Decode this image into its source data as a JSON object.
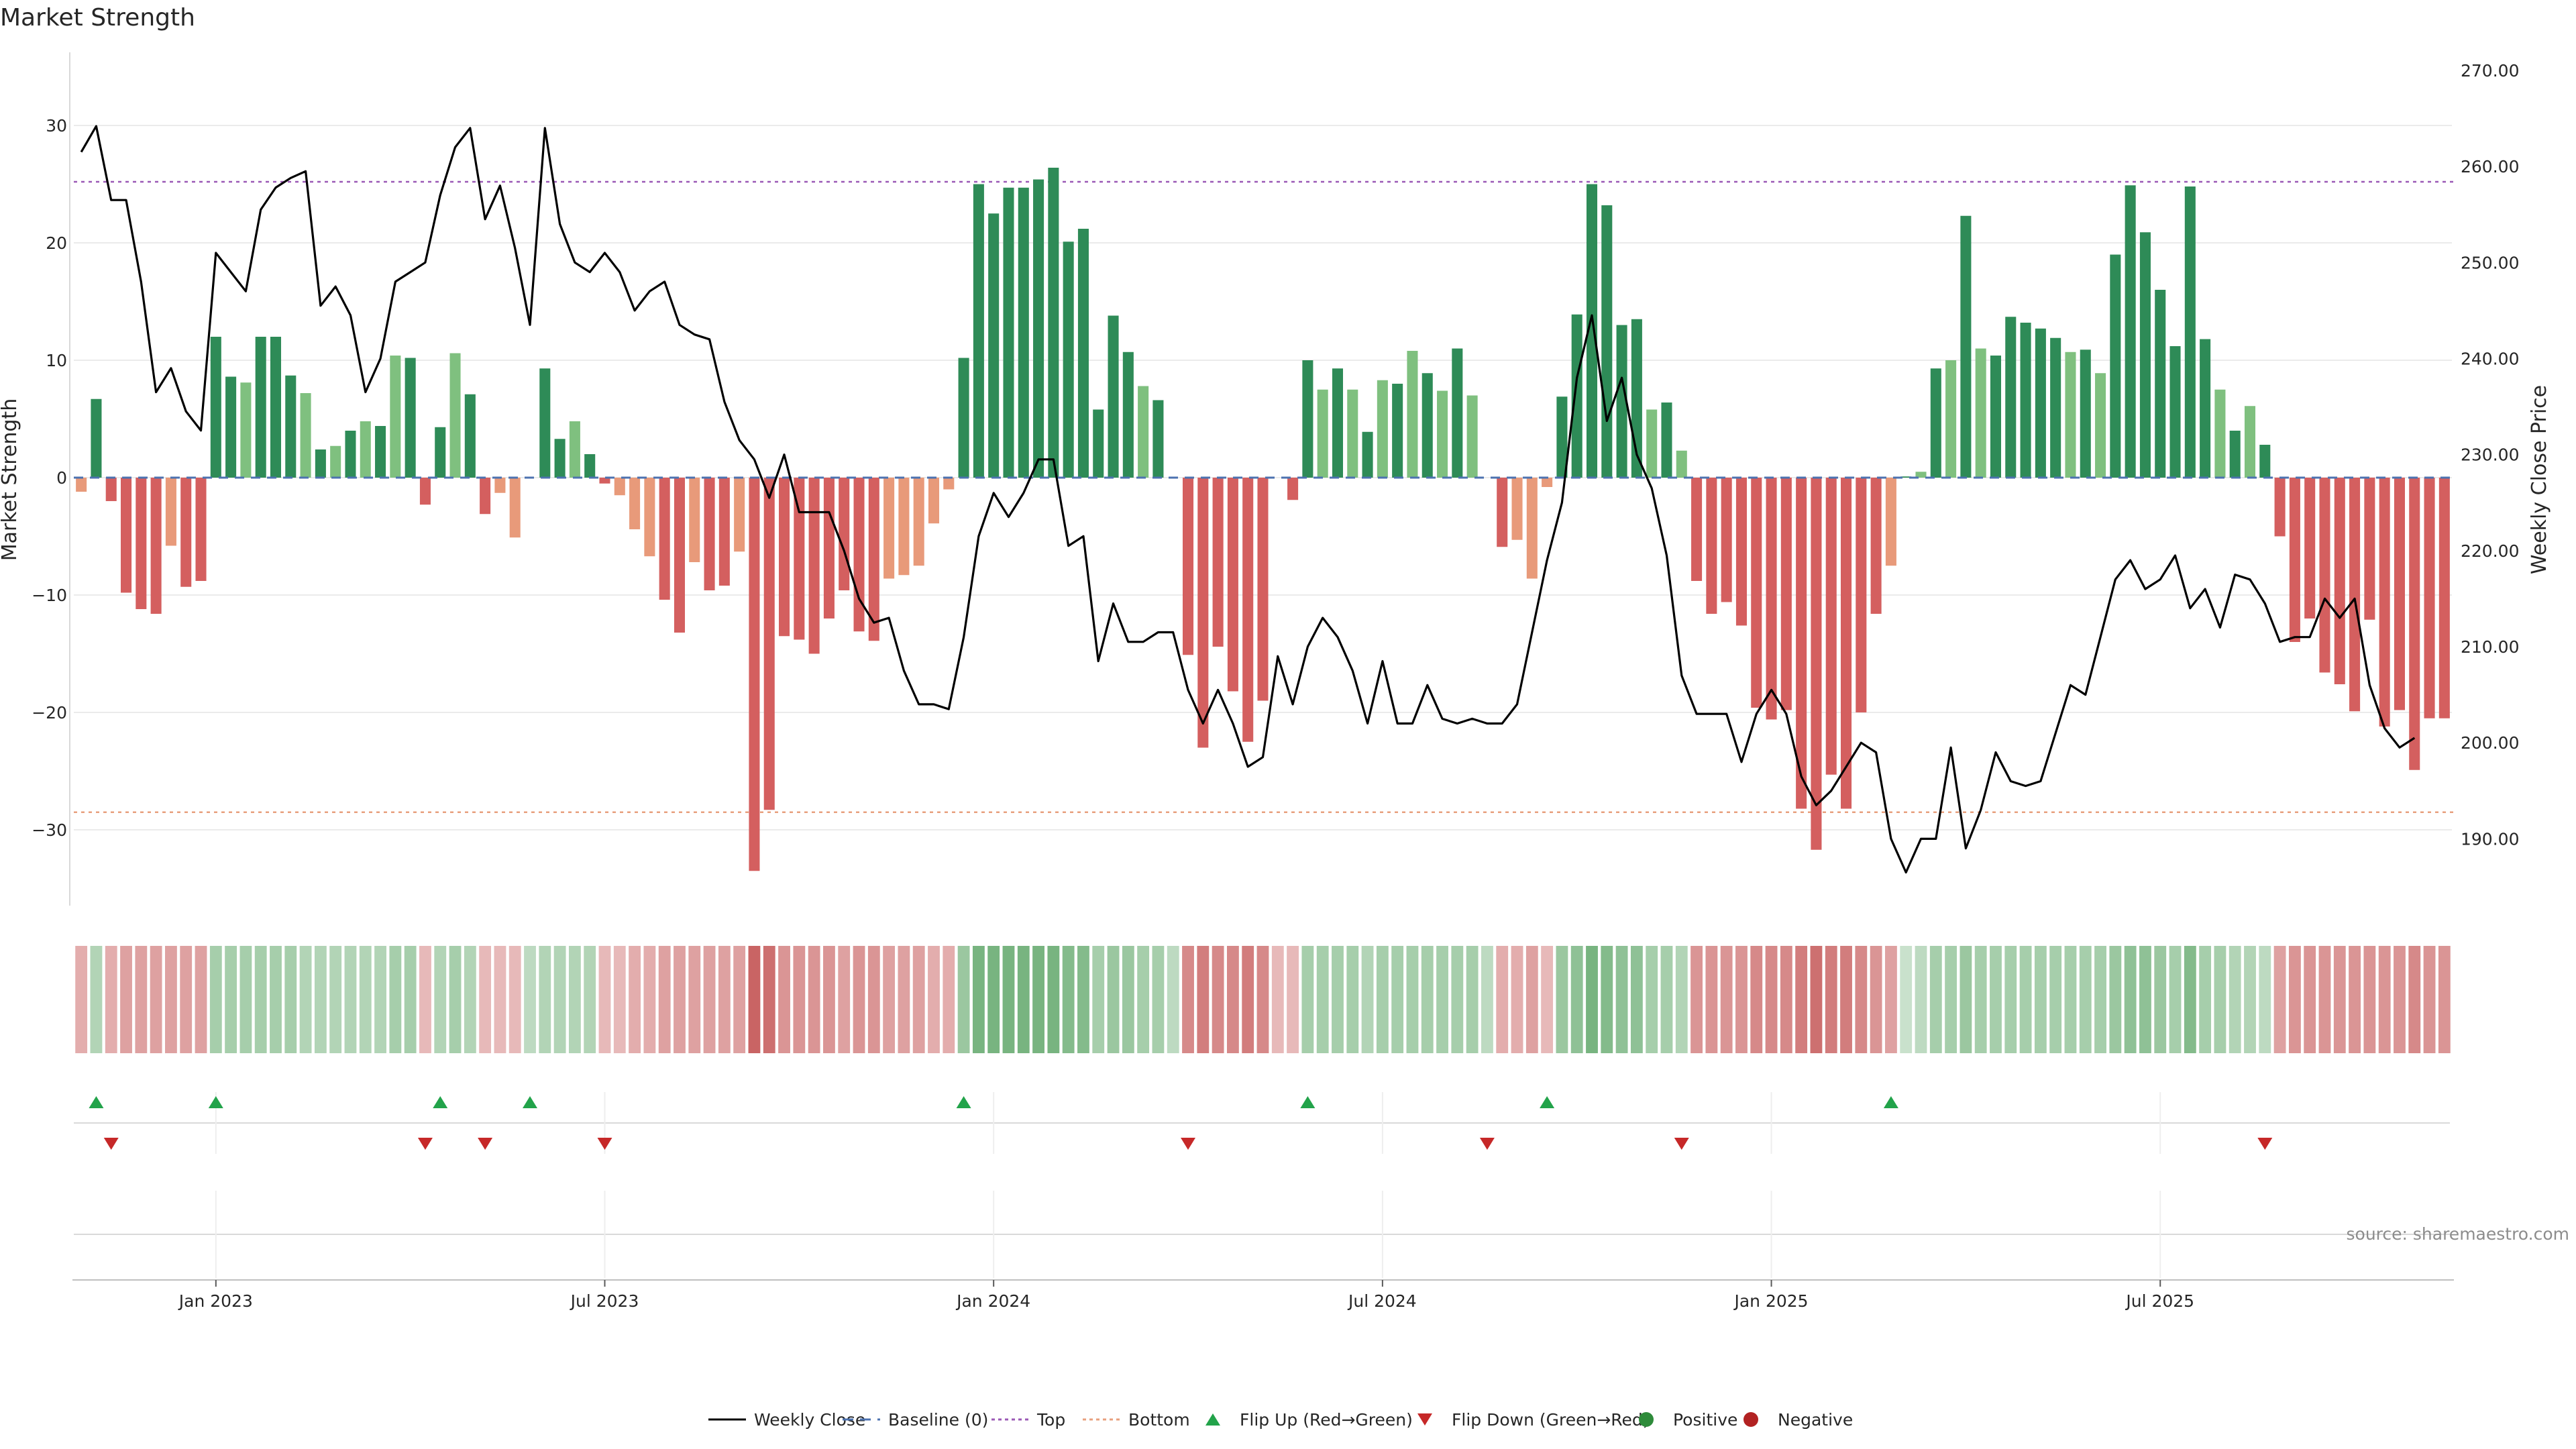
{
  "chart_data": {
    "type": "bar",
    "title": "Market Strength",
    "ylabel": "Market Strength",
    "y2label": "Weekly Close Price",
    "ylim": [
      -36,
      36
    ],
    "y2lim": [
      183.6,
      271.6
    ],
    "yticks": [
      -30,
      -20,
      -10,
      0,
      10,
      20,
      30
    ],
    "y2ticks": [
      "190.00",
      "200.00",
      "210.00",
      "220.00",
      "230.00",
      "240.00",
      "250.00",
      "260.00",
      "270.00"
    ],
    "top_threshold": 25.2,
    "bottom_threshold": -28.5,
    "x_tick_labels": [
      "Jan 2023",
      "Jul 2023",
      "Jan 2024",
      "Jul 2024",
      "Jan 2025",
      "Jul 2025"
    ],
    "x_tick_week_index": [
      9,
      35,
      61,
      87,
      113,
      139
    ],
    "start_week": "2022-11-07",
    "strength": [
      -1.2,
      6.7,
      -2.0,
      -9.8,
      -11.2,
      -11.6,
      -5.8,
      -9.3,
      -8.8,
      12.0,
      8.6,
      8.1,
      12.0,
      12.0,
      8.7,
      7.2,
      2.4,
      2.7,
      4.0,
      4.8,
      4.4,
      10.4,
      10.2,
      -2.3,
      4.3,
      10.6,
      7.1,
      -3.1,
      -1.3,
      -5.1,
      0,
      9.3,
      3.3,
      4.8,
      2.0,
      -0.5,
      -1.5,
      -4.4,
      -6.7,
      -10.4,
      -13.2,
      -7.2,
      -9.6,
      -9.2,
      -6.3,
      -33.5,
      -28.3,
      -13.5,
      -13.8,
      -15.0,
      -12.0,
      -9.6,
      -13.1,
      -13.9,
      -8.6,
      -8.3,
      -7.5,
      -3.9,
      -1.0,
      10.2,
      25.0,
      22.5,
      24.7,
      24.7,
      25.4,
      26.4,
      20.1,
      21.2,
      5.8,
      13.8,
      10.7,
      7.8,
      6.6,
      0,
      -15.1,
      -23.0,
      -14.4,
      -18.2,
      -22.5,
      -19.0,
      0,
      -1.9,
      10.0,
      7.5,
      9.3,
      7.5,
      3.9,
      8.3,
      8.0,
      10.8,
      8.9,
      7.4,
      11.0,
      7.0,
      0,
      -5.9,
      -5.3,
      -8.6,
      -0.8,
      6.9,
      13.9,
      25.0,
      23.2,
      13.0,
      13.5,
      5.8,
      6.4,
      2.3,
      -8.8,
      -11.6,
      -10.6,
      -12.6,
      -19.6,
      -20.6,
      -19.8,
      -28.2,
      -31.7,
      -25.3,
      -28.2,
      -20.0,
      -11.6,
      -7.5,
      0.1,
      0.5,
      9.3,
      10.0,
      22.3,
      11.0,
      10.4,
      13.7,
      13.2,
      12.7,
      11.9,
      10.7,
      10.9,
      8.9,
      19.0,
      24.9,
      20.9,
      16.0,
      11.2,
      24.8,
      11.8,
      7.5,
      4.0,
      6.1,
      2.8,
      -5.0,
      -14.0,
      -12.0,
      -16.6,
      -17.6,
      -19.9,
      -12.1,
      -21.2,
      -19.8,
      -24.9,
      -20.5,
      -20.5
    ],
    "series": [
      {
        "name": "Weekly Close",
        "values": [
          261.5,
          264.2,
          256.5,
          256.5,
          248.0,
          236.5,
          239.0,
          234.5,
          232.5,
          251.0,
          249.0,
          247.0,
          255.5,
          257.8,
          258.8,
          259.5,
          245.5,
          247.5,
          244.5,
          236.5,
          240.0,
          248.0,
          249.0,
          250.0,
          257.0,
          262.0,
          264.0,
          254.5,
          258.0,
          251.5,
          243.5,
          264.0,
          254.0,
          250.0,
          249.0,
          251.0,
          249.0,
          245.0,
          247.0,
          248.0,
          243.5,
          242.5,
          242.0,
          235.5,
          231.5,
          229.5,
          225.5,
          230.0,
          224.0,
          224.0,
          224.0,
          220.0,
          215.0,
          212.5,
          213.0,
          207.5,
          204.0,
          204.0,
          203.5,
          211.0,
          221.5,
          226.0,
          223.5,
          226.0,
          229.5,
          229.5,
          220.5,
          221.5,
          208.5,
          214.5,
          210.5,
          210.5,
          211.5,
          211.5,
          205.5,
          202.0,
          205.5,
          202.0,
          197.5,
          198.5,
          209.0,
          204.0,
          210.0,
          213.0,
          211.0,
          207.5,
          202.0,
          208.5,
          202.0,
          202.0,
          206.0,
          202.5,
          202.0,
          202.5,
          202.0,
          202.0,
          204.0,
          211.5,
          219.0,
          225.0,
          238.0,
          244.5,
          233.5,
          238.0,
          230.0,
          226.5,
          219.5,
          207.0,
          203.0,
          203.0,
          203.0,
          198.0,
          203.0,
          205.5,
          203.0,
          196.5,
          193.5,
          195.0,
          197.5,
          200.0,
          199.0,
          190.0,
          186.5,
          190.0,
          190.0,
          199.5,
          189.0,
          193.0,
          199.0,
          196.0,
          195.5,
          196.0,
          201.0,
          206.0,
          205.0,
          211.0,
          217.0,
          219.0,
          216.0,
          217.0,
          219.5,
          214.0,
          216.0,
          212.0,
          217.5,
          217.0,
          214.5,
          210.5,
          211.0,
          211.0,
          215.0,
          213.0,
          215.0,
          206.0,
          201.5,
          199.5,
          200.5
        ]
      }
    ],
    "state_cells": [
      -0.4,
      0.4,
      -0.4,
      -0.5,
      -0.5,
      -0.5,
      -0.5,
      -0.5,
      -0.5,
      0.5,
      0.5,
      0.5,
      0.5,
      0.5,
      0.5,
      0.4,
      0.4,
      0.4,
      0.4,
      0.4,
      0.4,
      0.5,
      0.5,
      -0.3,
      0.4,
      0.5,
      0.4,
      -0.3,
      -0.3,
      -0.3,
      0.3,
      0.4,
      0.4,
      0.4,
      0.4,
      -0.3,
      -0.3,
      -0.4,
      -0.4,
      -0.5,
      -0.5,
      -0.5,
      -0.5,
      -0.5,
      -0.5,
      -1.0,
      -0.9,
      -0.6,
      -0.6,
      -0.6,
      -0.6,
      -0.5,
      -0.6,
      -0.6,
      -0.5,
      -0.5,
      -0.5,
      -0.4,
      -0.4,
      0.6,
      0.9,
      0.9,
      0.9,
      0.9,
      0.9,
      0.9,
      0.8,
      0.8,
      0.5,
      0.6,
      0.6,
      0.5,
      0.5,
      0.3,
      -0.7,
      -0.8,
      -0.7,
      -0.7,
      -0.8,
      -0.7,
      -0.3,
      -0.3,
      0.5,
      0.5,
      0.5,
      0.5,
      0.4,
      0.5,
      0.5,
      0.5,
      0.5,
      0.5,
      0.5,
      0.5,
      0.3,
      -0.4,
      -0.4,
      -0.5,
      -0.3,
      0.6,
      0.7,
      0.9,
      0.8,
      0.7,
      0.7,
      0.5,
      0.5,
      0.4,
      -0.6,
      -0.6,
      -0.6,
      -0.6,
      -0.7,
      -0.7,
      -0.7,
      -0.8,
      -0.9,
      -0.8,
      -0.8,
      -0.7,
      -0.6,
      -0.5,
      0.2,
      0.3,
      0.5,
      0.5,
      0.6,
      0.5,
      0.5,
      0.5,
      0.5,
      0.5,
      0.5,
      0.5,
      0.5,
      0.5,
      0.6,
      0.7,
      0.7,
      0.6,
      0.5,
      0.8,
      0.5,
      0.5,
      0.4,
      0.4,
      0.3,
      -0.5,
      -0.6,
      -0.6,
      -0.6,
      -0.6,
      -0.6,
      -0.6,
      -0.6,
      -0.6,
      -0.7,
      -0.6,
      -0.6
    ],
    "flip_up_weeks": [
      1,
      9,
      24,
      30,
      59,
      82,
      98,
      121
    ],
    "flip_down_weeks": [
      2,
      23,
      27,
      35,
      74,
      94,
      107,
      146
    ],
    "source_note": "source: sharemaestro.com",
    "legend": [
      {
        "label": "Weekly Close",
        "kind": "line",
        "color": "#000000"
      },
      {
        "label": "Baseline (0)",
        "kind": "dash",
        "color": "#4c72b0"
      },
      {
        "label": "Top",
        "kind": "dot",
        "color": "#9b59b6"
      },
      {
        "label": "Bottom",
        "kind": "dot",
        "color": "#e8a07e"
      },
      {
        "label": "Flip Up (Red→Green)",
        "kind": "tri-up",
        "color": "#22a34a"
      },
      {
        "label": "Flip Down (Green→Red)",
        "kind": "tri-down",
        "color": "#c62828"
      },
      {
        "label": "Positive",
        "kind": "circle",
        "color": "#2e8b3a"
      },
      {
        "label": "Negative",
        "kind": "circle",
        "color": "#b22222"
      }
    ],
    "colors": {
      "strong_pos": "#2e8b57",
      "weak_pos": "#7fc07f",
      "strong_neg": "#d45f5f",
      "weak_neg": "#e89a7a",
      "price_line": "#000000",
      "top_line": "#9b59b6",
      "bottom_line": "#e8a07e",
      "baseline": "#4c72b0",
      "grid": "#ebebeb"
    }
  }
}
